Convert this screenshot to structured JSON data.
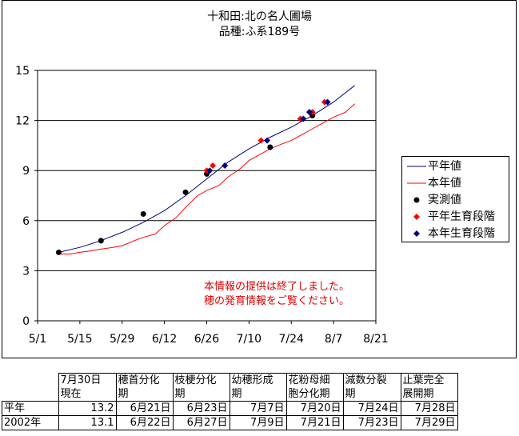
{
  "title_line1": "十和田:北の名人圃場",
  "title_line2": "品種:ふ系189号",
  "chart_data": {
    "type": "line",
    "x_axis": {
      "ticks": [
        "5/1",
        "5/15",
        "5/29",
        "6/12",
        "6/26",
        "7/10",
        "7/24",
        "8/7",
        "8/21"
      ],
      "range": [
        "5/1",
        "8/21"
      ]
    },
    "y_axis": {
      "ticks": [
        "0",
        "3",
        "6",
        "9",
        "12",
        "15"
      ],
      "range": [
        0,
        15
      ]
    },
    "grid": "horizontal",
    "legend_position": "right",
    "colors": {
      "average": "#00007f",
      "this_year": "#ff0000",
      "measured": "#000000",
      "avg_stage": "#ff0000",
      "this_stage": "#00007f"
    },
    "series": [
      {
        "name": "平年値",
        "kind": "line",
        "points": [
          [
            "5/8",
            4.1
          ],
          [
            "5/15",
            4.4
          ],
          [
            "5/22",
            4.8
          ],
          [
            "5/29",
            5.3
          ],
          [
            "6/5",
            5.9
          ],
          [
            "6/12",
            6.6
          ],
          [
            "6/19",
            7.5
          ],
          [
            "6/26",
            8.5
          ],
          [
            "7/3",
            9.5
          ],
          [
            "7/10",
            10.3
          ],
          [
            "7/17",
            11.0
          ],
          [
            "7/24",
            11.6
          ],
          [
            "7/31",
            12.3
          ],
          [
            "8/7",
            13.1
          ],
          [
            "8/14",
            14.1
          ]
        ]
      },
      {
        "name": "本年値",
        "kind": "line",
        "points": [
          [
            "5/8",
            4.0
          ],
          [
            "5/12",
            4.0
          ],
          [
            "5/15",
            4.1
          ],
          [
            "5/19",
            4.2
          ],
          [
            "5/22",
            4.3
          ],
          [
            "5/26",
            4.4
          ],
          [
            "5/29",
            4.5
          ],
          [
            "6/2",
            4.8
          ],
          [
            "6/5",
            5.0
          ],
          [
            "6/9",
            5.2
          ],
          [
            "6/12",
            5.7
          ],
          [
            "6/16",
            6.2
          ],
          [
            "6/19",
            6.8
          ],
          [
            "6/23",
            7.5
          ],
          [
            "6/26",
            7.8
          ],
          [
            "6/30",
            8.1
          ],
          [
            "7/3",
            8.6
          ],
          [
            "7/7",
            9.1
          ],
          [
            "7/10",
            9.6
          ],
          [
            "7/14",
            10.0
          ],
          [
            "7/17",
            10.3
          ],
          [
            "7/21",
            10.6
          ],
          [
            "7/24",
            10.8
          ],
          [
            "7/28",
            11.2
          ],
          [
            "7/31",
            11.5
          ],
          [
            "8/4",
            11.9
          ],
          [
            "8/7",
            12.2
          ],
          [
            "8/11",
            12.5
          ],
          [
            "8/14",
            13.0
          ]
        ]
      },
      {
        "name": "実測値",
        "kind": "marker",
        "marker": "circle",
        "points": [
          [
            "5/8",
            4.1
          ],
          [
            "5/22",
            4.8
          ],
          [
            "6/5",
            6.4
          ],
          [
            "6/19",
            7.7
          ],
          [
            "6/26",
            8.8
          ],
          [
            "7/17",
            10.4
          ],
          [
            "7/31",
            12.3
          ]
        ]
      },
      {
        "name": "平年生育段階",
        "kind": "marker",
        "marker": "diamond",
        "points": [
          [
            "6/26",
            9.0
          ],
          [
            "6/28",
            9.3
          ],
          [
            "7/14",
            10.8
          ],
          [
            "7/27",
            12.1
          ],
          [
            "7/31",
            12.5
          ],
          [
            "8/4",
            13.1
          ]
        ]
      },
      {
        "name": "本年生育段階",
        "kind": "marker",
        "marker": "diamond",
        "points": [
          [
            "6/27",
            9.0
          ],
          [
            "7/2",
            9.3
          ],
          [
            "7/16",
            10.8
          ],
          [
            "7/28",
            12.1
          ],
          [
            "7/30",
            12.5
          ],
          [
            "8/5",
            13.1
          ]
        ]
      }
    ]
  },
  "legend": [
    {
      "label": "平年値",
      "symbol": "line",
      "color": "#00007f"
    },
    {
      "label": "本年値",
      "symbol": "line",
      "color": "#ff0000"
    },
    {
      "label": "実測値",
      "symbol": "circle",
      "color": "#000000"
    },
    {
      "label": "平年生育段階",
      "symbol": "diamond",
      "color": "#ff0000"
    },
    {
      "label": "本年生育段階",
      "symbol": "diamond",
      "color": "#00007f"
    }
  ],
  "notice": {
    "line1": "本情報の提供は終了しました。",
    "line2": "穂の発育情報をご覧ください。"
  },
  "table": {
    "headers": [
      [
        "7月30日",
        "現在"
      ],
      [
        "穂首分化",
        "期"
      ],
      [
        "枝梗分化",
        "期"
      ],
      [
        "幼穂形成",
        "期"
      ],
      [
        "花粉母細",
        "胞分化期"
      ],
      [
        "減数分裂",
        "期"
      ],
      [
        "止葉完全",
        "展開期"
      ]
    ],
    "rows": [
      {
        "label": "平年",
        "cells": [
          "13.2",
          "6月21日",
          "6月23日",
          "7月7日",
          "7月20日",
          "7月24日",
          "7月28日"
        ]
      },
      {
        "label": "2002年",
        "cells": [
          "13.1",
          "6月22日",
          "6月27日",
          "7月9日",
          "7月21日",
          "7月23日",
          "7月29日"
        ]
      }
    ]
  }
}
